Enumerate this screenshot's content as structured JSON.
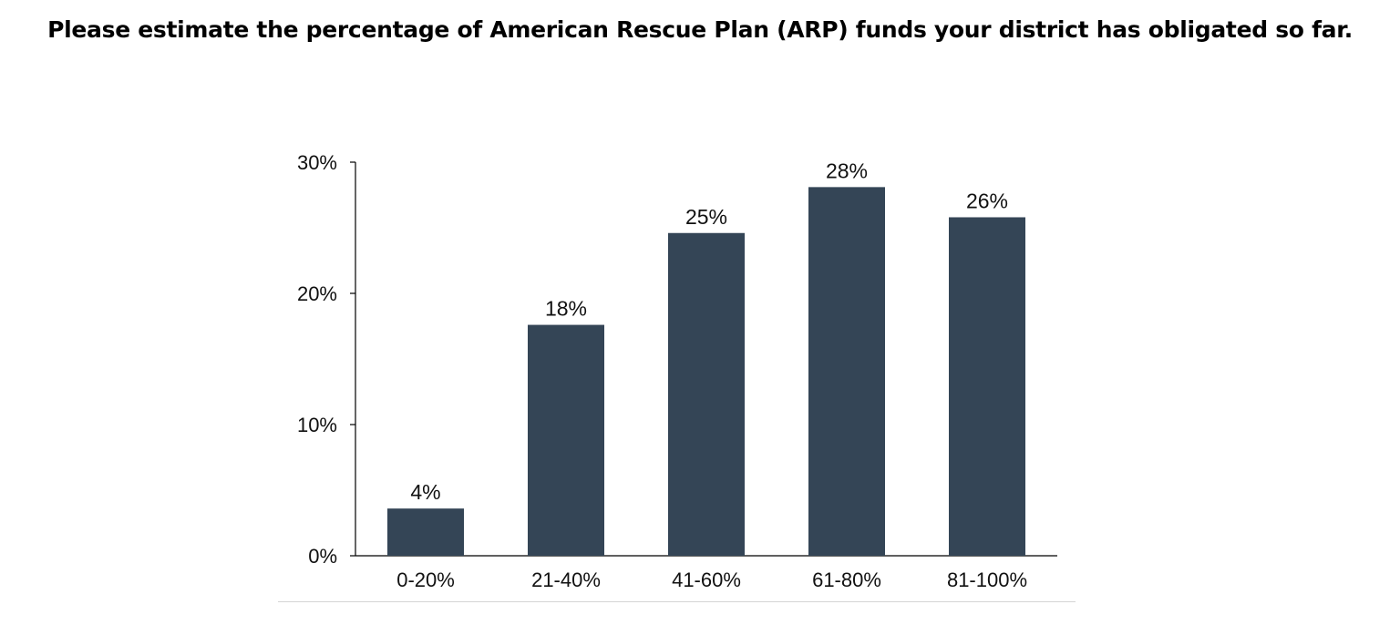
{
  "title": "Please estimate the percentage of American Rescue Plan (ARP) funds your district has obligated so far.",
  "chart_data": {
    "type": "bar",
    "categories": [
      "0-20%",
      "21-40%",
      "41-60%",
      "61-80%",
      "81-100%"
    ],
    "values": [
      3.6,
      17.6,
      24.6,
      28.1,
      25.8
    ],
    "data_labels": [
      "4%",
      "18%",
      "25%",
      "28%",
      "26%"
    ],
    "ylim": [
      0,
      30
    ],
    "yticks": [
      0,
      10,
      20,
      30
    ],
    "ytick_labels": [
      "0%",
      "10%",
      "20%",
      "30%"
    ],
    "xlabel": "",
    "ylabel": "",
    "grid": false,
    "legend": "none",
    "bar_color": "#344556",
    "axis_color": "#000000"
  }
}
